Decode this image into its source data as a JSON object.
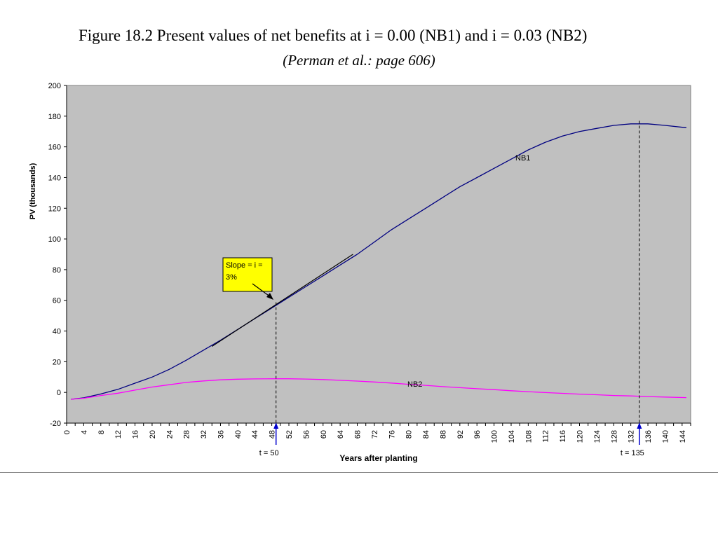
{
  "slide": {
    "title": "Figure 18.2 Present values of net benefits at i = 0.00 (NB1) and i = 0.03 (NB2)",
    "subtitle": "(Perman et al.: page 606)"
  },
  "chart_data": {
    "type": "line",
    "xlabel": "Years after planting",
    "ylabel": "PV (thousands)",
    "xlim": [
      0,
      146
    ],
    "ylim": [
      -20,
      200
    ],
    "x_ticks": [
      0,
      4,
      8,
      12,
      16,
      20,
      24,
      28,
      32,
      36,
      40,
      44,
      48,
      52,
      56,
      60,
      64,
      68,
      72,
      76,
      80,
      84,
      88,
      92,
      96,
      100,
      104,
      108,
      112,
      116,
      120,
      124,
      128,
      132,
      136,
      140,
      144
    ],
    "y_ticks": [
      -20,
      0,
      20,
      40,
      60,
      80,
      100,
      120,
      140,
      160,
      180,
      200
    ],
    "grid": false,
    "plot_background": "#c0c0c0",
    "series": [
      {
        "name": "NB1",
        "color": "#000080",
        "x": [
          1,
          4,
          8,
          12,
          16,
          20,
          24,
          28,
          32,
          36,
          40,
          44,
          48,
          52,
          56,
          60,
          64,
          68,
          72,
          76,
          80,
          84,
          88,
          92,
          96,
          100,
          104,
          108,
          112,
          116,
          120,
          124,
          128,
          132,
          136,
          140,
          145
        ],
        "y": [
          -4.5,
          -3.5,
          -1,
          2,
          6,
          10,
          15,
          21,
          27.5,
          34,
          41,
          48,
          55,
          62,
          69,
          76,
          83,
          90,
          98,
          106,
          113,
          120,
          127,
          134,
          140,
          146,
          152,
          158,
          163,
          167,
          170,
          172,
          174,
          175,
          175,
          174,
          172.5
        ]
      },
      {
        "name": "NB2",
        "color": "#ff00ff",
        "x": [
          1,
          4,
          8,
          12,
          16,
          20,
          24,
          28,
          32,
          36,
          40,
          44,
          48,
          52,
          56,
          60,
          64,
          68,
          72,
          76,
          80,
          84,
          88,
          92,
          96,
          100,
          104,
          108,
          112,
          116,
          120,
          124,
          128,
          132,
          136,
          140,
          145
        ],
        "y": [
          -4.5,
          -3.8,
          -2,
          -0.5,
          1.5,
          3.5,
          5,
          6.5,
          7.5,
          8.2,
          8.6,
          8.8,
          8.9,
          8.9,
          8.7,
          8.4,
          7.9,
          7.4,
          6.8,
          6.1,
          5.3,
          4.6,
          3.8,
          3.1,
          2.4,
          1.8,
          1.1,
          0.5,
          -0.1,
          -0.6,
          -1.1,
          -1.5,
          -2,
          -2.3,
          -2.7,
          -3,
          -3.4
        ]
      }
    ],
    "tangent_line": {
      "from": [
        34,
        30
      ],
      "to": [
        67,
        90
      ],
      "color": "#000000"
    },
    "vlines": [
      {
        "x": 49,
        "label": "t = 50"
      },
      {
        "x": 134,
        "label": "t = 135"
      }
    ],
    "annotations": {
      "slope_box_text": "Slope = i = 3%",
      "slope_box_line1": "Slope = i =",
      "slope_box_line2": "3%",
      "slope_box_color": "#ffff00",
      "nb1_label": "NB1",
      "nb2_label": "NB2"
    }
  }
}
